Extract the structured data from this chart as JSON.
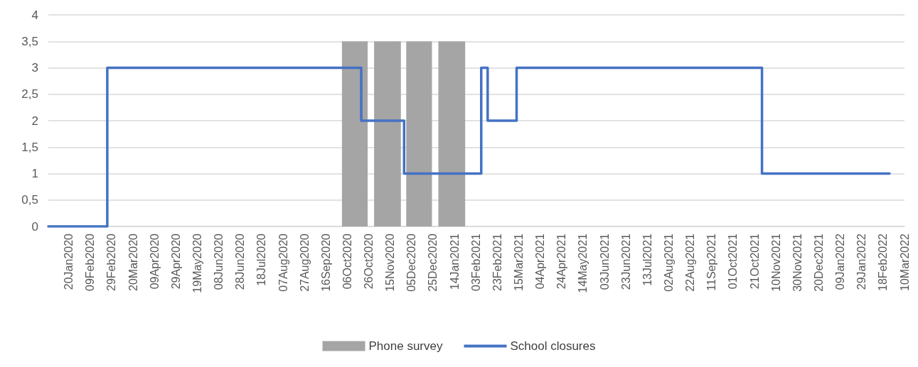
{
  "chart_data": {
    "type": "step",
    "xlim": [
      "2020-01-01",
      "2022-03-10"
    ],
    "xticks": [
      {
        "value": "2020-01-20",
        "label": "20Jan2020"
      },
      {
        "value": "2020-02-09",
        "label": "09Feb2020"
      },
      {
        "value": "2020-02-29",
        "label": "29Feb2020"
      },
      {
        "value": "2020-03-20",
        "label": "20Mar2020"
      },
      {
        "value": "2020-04-09",
        "label": "09Apr2020"
      },
      {
        "value": "2020-04-29",
        "label": "29Apr2020"
      },
      {
        "value": "2020-05-19",
        "label": "19May2020"
      },
      {
        "value": "2020-06-08",
        "label": "08Jun2020"
      },
      {
        "value": "2020-06-28",
        "label": "28Jun2020"
      },
      {
        "value": "2020-07-18",
        "label": "18Jul2020"
      },
      {
        "value": "2020-08-07",
        "label": "07Aug2020"
      },
      {
        "value": "2020-08-27",
        "label": "27Aug2020"
      },
      {
        "value": "2020-09-16",
        "label": "16Sep2020"
      },
      {
        "value": "2020-10-06",
        "label": "06Oct2020"
      },
      {
        "value": "2020-10-26",
        "label": "26Oct2020"
      },
      {
        "value": "2020-11-15",
        "label": "15Nov2020"
      },
      {
        "value": "2020-12-05",
        "label": "05Dec2020"
      },
      {
        "value": "2020-12-25",
        "label": "25Dec2020"
      },
      {
        "value": "2021-01-14",
        "label": "14Jan2021"
      },
      {
        "value": "2021-02-03",
        "label": "03Feb2021"
      },
      {
        "value": "2021-02-23",
        "label": "23Feb2021"
      },
      {
        "value": "2021-03-15",
        "label": "15Mar2021"
      },
      {
        "value": "2021-04-04",
        "label": "04Apr2021"
      },
      {
        "value": "2021-04-24",
        "label": "24Apr2021"
      },
      {
        "value": "2021-05-14",
        "label": "14May2021"
      },
      {
        "value": "2021-06-03",
        "label": "03Jun2021"
      },
      {
        "value": "2021-06-23",
        "label": "23Jun2021"
      },
      {
        "value": "2021-07-13",
        "label": "13Jul2021"
      },
      {
        "value": "2021-08-02",
        "label": "02Aug2021"
      },
      {
        "value": "2021-08-22",
        "label": "22Aug2021"
      },
      {
        "value": "2021-09-11",
        "label": "11Sep2021"
      },
      {
        "value": "2021-10-01",
        "label": "01Oct2021"
      },
      {
        "value": "2021-10-21",
        "label": "21Oct2021"
      },
      {
        "value": "2021-11-10",
        "label": "10Nov2021"
      },
      {
        "value": "2021-11-30",
        "label": "30Nov2021"
      },
      {
        "value": "2021-12-20",
        "label": "20Dec2021"
      },
      {
        "value": "2022-01-09",
        "label": "09Jan2022"
      },
      {
        "value": "2022-01-29",
        "label": "29Jan2022"
      },
      {
        "value": "2022-02-18",
        "label": "18Feb2022"
      },
      {
        "value": "2022-03-10",
        "label": "10Mar2022"
      }
    ],
    "ylim": [
      0,
      4
    ],
    "yticks": [
      0,
      {
        "value": 0.5,
        "label": "0,5"
      },
      1,
      {
        "value": 1.5,
        "label": "1,5"
      },
      2,
      {
        "value": 2.5,
        "label": "2,5"
      },
      3,
      {
        "value": 3.5,
        "label": "3,5"
      },
      4
    ],
    "grid": "y",
    "legend": "bottom",
    "series": [
      {
        "name": "Phone survey",
        "type": "area",
        "color": "#a5a5a5",
        "x": [
          "2020-10-01",
          "2020-10-01",
          "2020-10-25",
          "2020-10-25",
          "2020-10-31",
          "2020-10-31",
          "2020-11-25",
          "2020-11-25",
          "2020-11-30",
          "2020-11-30",
          "2020-12-24",
          "2020-12-24",
          "2020-12-30",
          "2020-12-30",
          "2021-01-24",
          "2021-01-24"
        ],
        "values": [
          0,
          3.5,
          3.5,
          0,
          0,
          3.5,
          3.5,
          0,
          0,
          3.5,
          3.5,
          0,
          0,
          3.5,
          3.5,
          0
        ]
      },
      {
        "name": "School closures",
        "color": "#4472c4",
        "x": [
          "2020-01-01",
          "2020-02-25",
          "2020-10-19",
          "2020-11-28",
          "2021-02-08",
          "2021-02-14",
          "2021-03-13",
          "2021-10-28",
          "2022-02-24"
        ],
        "values": [
          0,
          3,
          2,
          1,
          3,
          2,
          3,
          1,
          1
        ]
      }
    ]
  }
}
